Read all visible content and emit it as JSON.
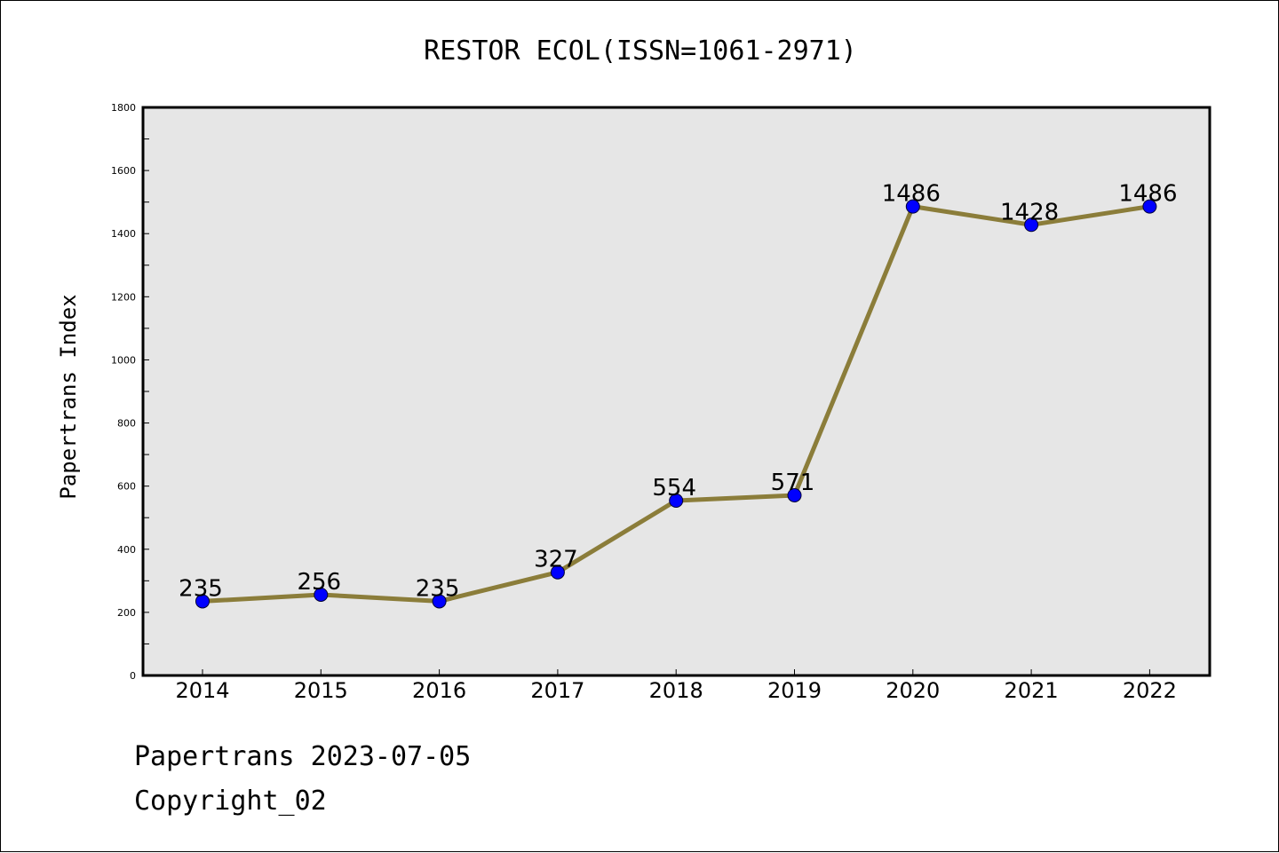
{
  "chart_data": {
    "type": "line",
    "title": "RESTOR ECOL(ISSN=1061-2971)",
    "xlabel": "",
    "ylabel": "Papertrans Index",
    "categories": [
      "2014",
      "2015",
      "2016",
      "2017",
      "2018",
      "2019",
      "2020",
      "2021",
      "2022"
    ],
    "values": [
      235,
      256,
      235,
      327,
      554,
      571,
      1486,
      1428,
      1486
    ],
    "data_labels": [
      "235",
      "256",
      "235",
      "327",
      "554",
      "571",
      "1486",
      "1428",
      "1486"
    ],
    "ylim": [
      0,
      1800
    ],
    "y_ticks": [
      0,
      200,
      400,
      600,
      800,
      1000,
      1200,
      1400,
      1600,
      1800
    ],
    "grid": false,
    "legend": "none",
    "line_color": "#8b7d3a",
    "marker_color": "#0000ff",
    "plot_background": "#e6e6e6"
  },
  "footer": {
    "line1": "Papertrans 2023-07-05",
    "line2": "Copyright_02"
  }
}
